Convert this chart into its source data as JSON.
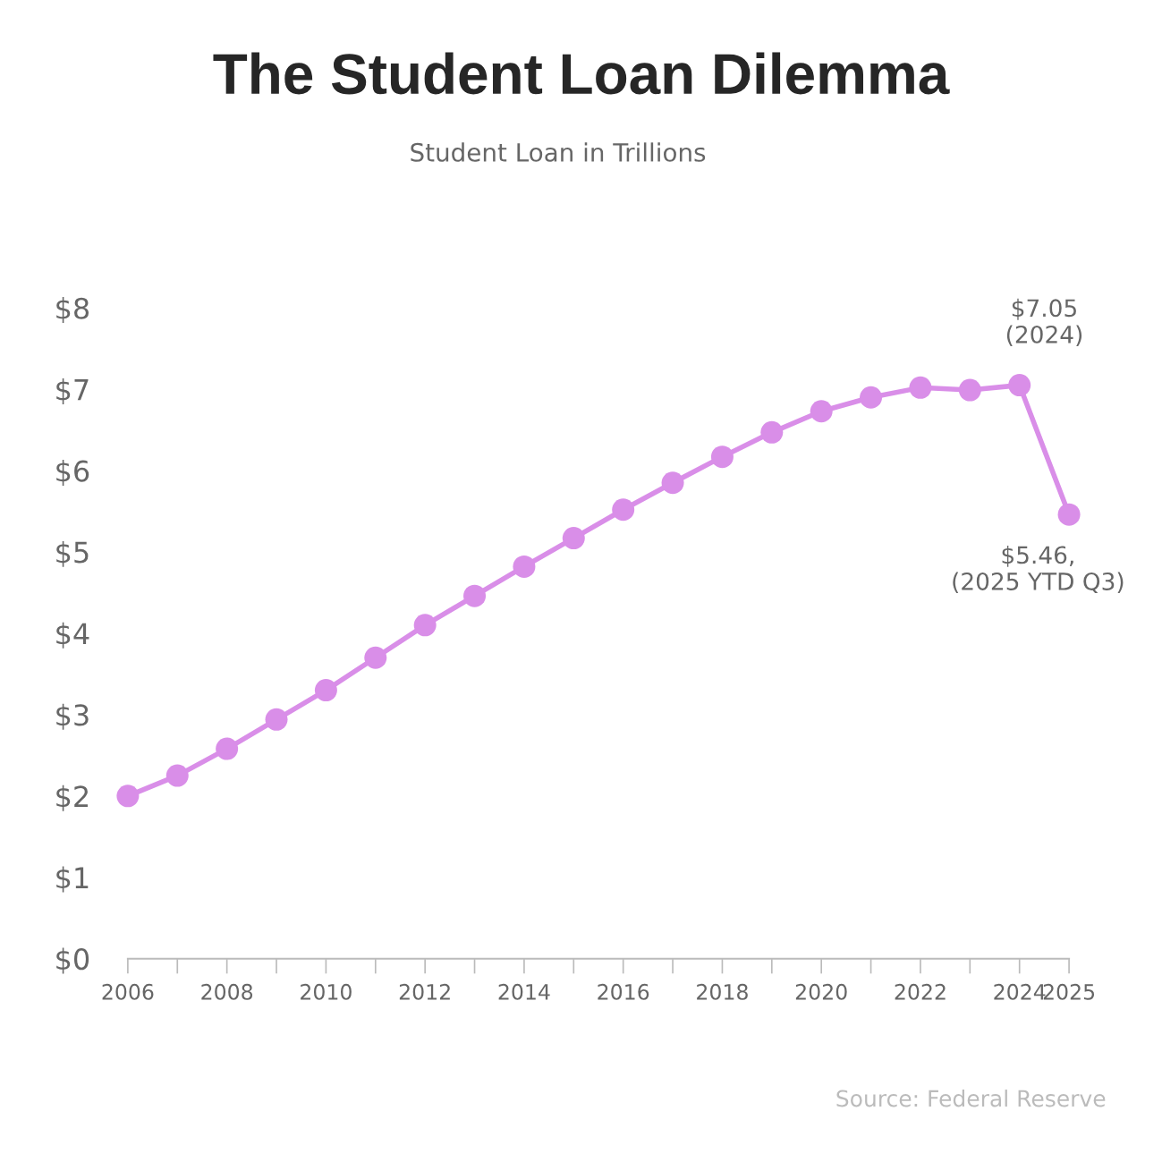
{
  "chart_data": {
    "type": "line",
    "title": "The Student Loan Dilemma",
    "subtitle": "Student Loan in Trillions",
    "x": [
      2006,
      2007,
      2008,
      2009,
      2010,
      2011,
      2012,
      2013,
      2014,
      2015,
      2016,
      2017,
      2018,
      2019,
      2020,
      2021,
      2022,
      2023,
      2024,
      2025
    ],
    "series": [
      {
        "color": "#d98ee8",
        "values": [
          2.0,
          2.25,
          2.58,
          2.94,
          3.3,
          3.7,
          4.1,
          4.46,
          4.82,
          5.17,
          5.52,
          5.85,
          6.17,
          6.47,
          6.73,
          6.9,
          7.02,
          6.99,
          7.05,
          5.46
        ]
      }
    ],
    "xlim": [
      2006,
      2025
    ],
    "xticks": [
      2006,
      2008,
      2010,
      2012,
      2014,
      2016,
      2018,
      2020,
      2022,
      2024,
      2025
    ],
    "ylim": [
      0,
      8
    ],
    "yticks": [
      {
        "value": 0,
        "label": "$0"
      },
      {
        "value": 1,
        "label": "$1"
      },
      {
        "value": 2,
        "label": "$2"
      },
      {
        "value": 3,
        "label": "$3"
      },
      {
        "value": 4,
        "label": "$4"
      },
      {
        "value": 5,
        "label": "$5"
      },
      {
        "value": 6,
        "label": "$6"
      },
      {
        "value": 7,
        "label": "$7"
      },
      {
        "value": 8,
        "label": "$8"
      }
    ],
    "marker": "circle",
    "line_style": "solid",
    "annotations": [
      {
        "text": "$7.05\n(2024)",
        "x": 2024,
        "y": 7.05
      },
      {
        "text": "$5.46,\n(2025 YTD Q3)",
        "x": 2025,
        "y": 5.46
      },
      "Source: Federal Reserve"
    ]
  }
}
